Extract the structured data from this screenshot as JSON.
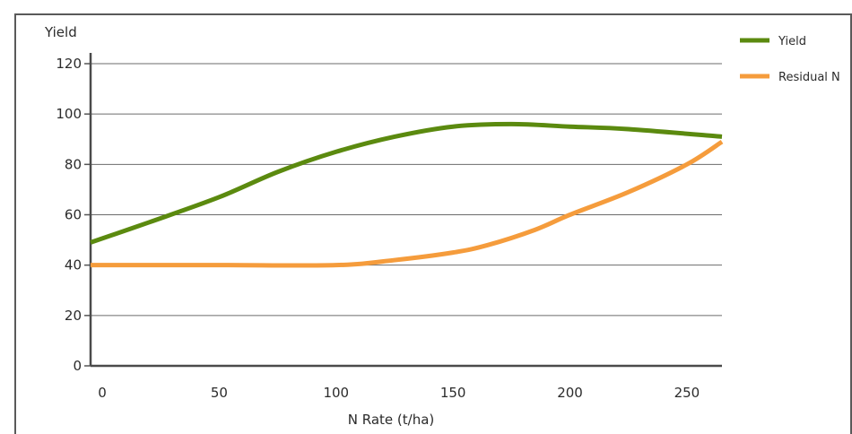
{
  "chart_data": {
    "type": "line",
    "xlabel": "N Rate (t/ha)",
    "ylabel": "Yield",
    "xlim": [
      -5,
      265
    ],
    "ylim": [
      0,
      120
    ],
    "xticks": [
      "0",
      "50",
      "100",
      "150",
      "200",
      "250"
    ],
    "yticks": [
      "0",
      "20",
      "40",
      "60",
      "80",
      "100",
      "120"
    ],
    "grid": "horizontal",
    "legend_position": "right",
    "series": [
      {
        "name": "Yield",
        "color": "#5b8a0f",
        "x": [
          -5,
          20,
          50,
          75,
          100,
          125,
          150,
          175,
          200,
          225,
          265
        ],
        "y": [
          49,
          57,
          67,
          77,
          85,
          91,
          95,
          96,
          95,
          94,
          91
        ]
      },
      {
        "name": "Residual N",
        "color": "#f59c3c",
        "x": [
          -5,
          50,
          100,
          125,
          150,
          165,
          185,
          200,
          225,
          250,
          265
        ],
        "y": [
          40,
          40,
          40,
          42,
          45,
          48,
          54,
          60,
          69,
          80,
          89
        ]
      }
    ]
  }
}
